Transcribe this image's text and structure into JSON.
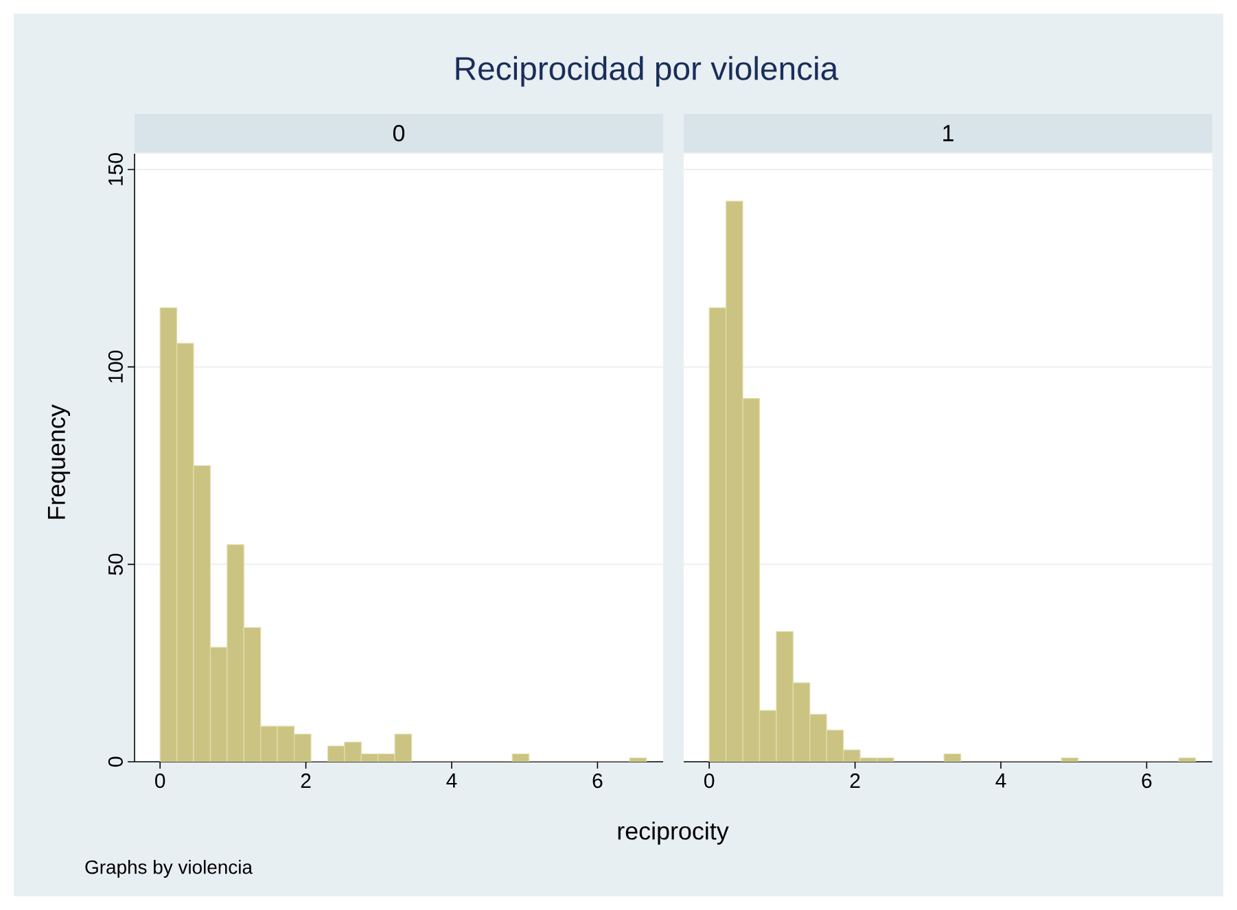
{
  "chart_data": [
    {
      "type": "histogram",
      "title": "Reciprocidad por violencia",
      "subtitle": "0",
      "xlabel": "reciprocity",
      "ylabel": "Frequency",
      "annotations": [
        "Graphs by violencia"
      ],
      "color": "#cbc382",
      "bins": [
        0,
        0.23,
        0.46,
        0.69,
        0.92,
        1.15,
        1.38,
        1.61,
        1.84,
        2.07,
        2.3,
        2.53,
        2.76,
        2.99,
        3.22,
        3.45,
        3.68,
        3.91,
        4.14,
        4.37,
        4.6,
        4.83,
        5.06,
        5.29,
        5.52,
        5.75,
        5.98,
        6.21,
        6.44,
        6.67
      ],
      "values": [
        115,
        106,
        75,
        29,
        55,
        34,
        9,
        9,
        7,
        0,
        4,
        5,
        2,
        2,
        7,
        0,
        0,
        0,
        0,
        0,
        0,
        2,
        0,
        0,
        0,
        0,
        0,
        0,
        1
      ],
      "xlim": [
        -0.35,
        6.9
      ],
      "ylim": [
        0,
        154
      ],
      "xticks": [
        0,
        2,
        4,
        6
      ],
      "yticks": [
        0,
        50,
        100,
        150
      ],
      "grid": "y"
    },
    {
      "type": "histogram",
      "subtitle": "1",
      "color": "#cbc382",
      "bins": [
        0,
        0.23,
        0.46,
        0.69,
        0.92,
        1.15,
        1.38,
        1.61,
        1.84,
        2.07,
        2.3,
        2.53,
        2.76,
        2.99,
        3.22,
        3.45,
        3.68,
        3.91,
        4.14,
        4.37,
        4.6,
        4.83,
        5.06,
        5.29,
        5.52,
        5.75,
        5.98,
        6.21,
        6.44,
        6.67
      ],
      "values": [
        115,
        142,
        92,
        13,
        33,
        20,
        12,
        8,
        3,
        1,
        1,
        0,
        0,
        0,
        2,
        0,
        0,
        0,
        0,
        0,
        0,
        1,
        0,
        0,
        0,
        0,
        0,
        0,
        1
      ],
      "xlim": [
        -0.35,
        6.9
      ],
      "ylim": [
        0,
        154
      ],
      "xticks": [
        0,
        2,
        4,
        6
      ],
      "yticks": [
        0,
        50,
        100,
        150
      ],
      "grid": "y",
      "tick_labels": "x"
    }
  ]
}
